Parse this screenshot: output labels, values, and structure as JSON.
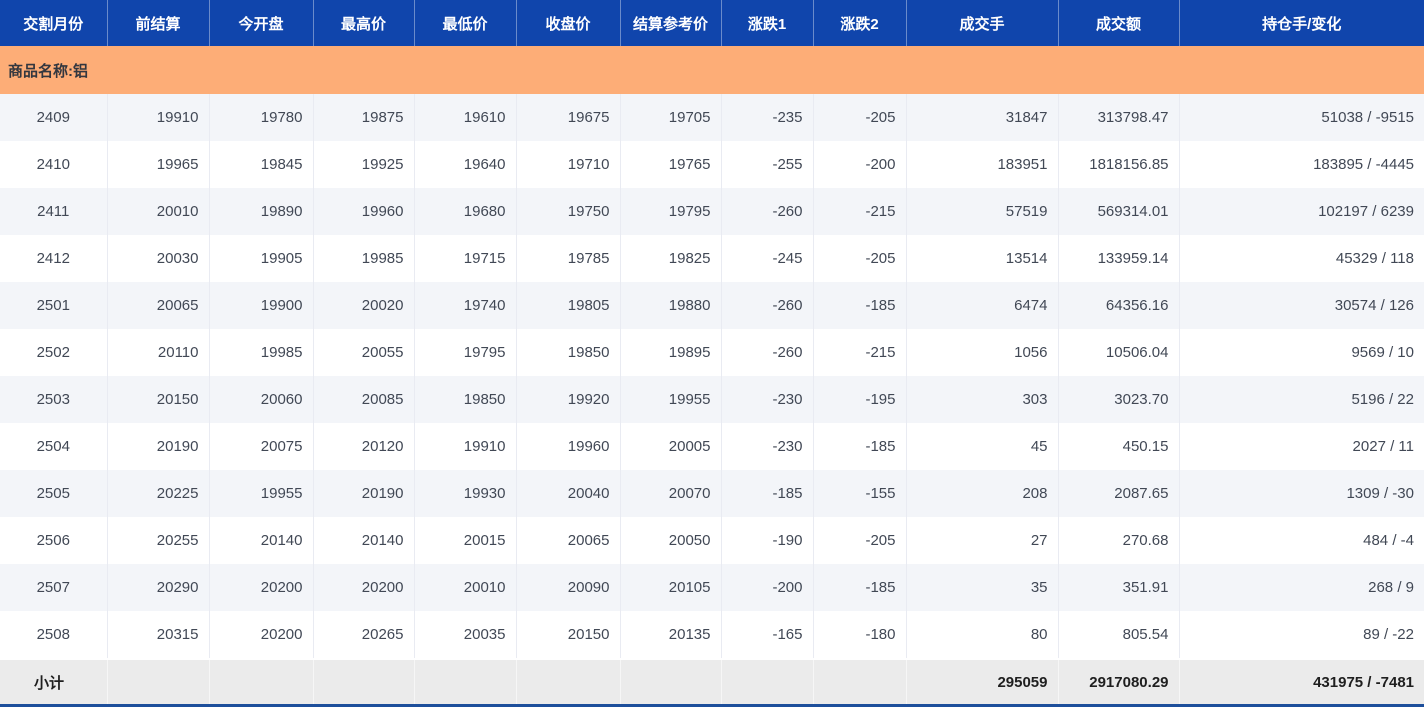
{
  "table": {
    "product_banner": "商品名称:铝",
    "columns": [
      {
        "key": "delivery-month",
        "label": "交割月份"
      },
      {
        "key": "prev-settlement",
        "label": "前结算"
      },
      {
        "key": "open",
        "label": "今开盘"
      },
      {
        "key": "high",
        "label": "最高价"
      },
      {
        "key": "low",
        "label": "最低价"
      },
      {
        "key": "close",
        "label": "收盘价"
      },
      {
        "key": "settlement-ref",
        "label": "结算参考价"
      },
      {
        "key": "change1",
        "label": "涨跌1"
      },
      {
        "key": "change2",
        "label": "涨跌2"
      },
      {
        "key": "volume",
        "label": "成交手"
      },
      {
        "key": "turnover",
        "label": "成交额"
      },
      {
        "key": "open-interest-change",
        "label": "持仓手/变化"
      }
    ],
    "rows": [
      [
        "2409",
        "19910",
        "19780",
        "19875",
        "19610",
        "19675",
        "19705",
        "-235",
        "-205",
        "31847",
        "313798.47",
        "51038 / -9515"
      ],
      [
        "2410",
        "19965",
        "19845",
        "19925",
        "19640",
        "19710",
        "19765",
        "-255",
        "-200",
        "183951",
        "1818156.85",
        "183895 / -4445"
      ],
      [
        "2411",
        "20010",
        "19890",
        "19960",
        "19680",
        "19750",
        "19795",
        "-260",
        "-215",
        "57519",
        "569314.01",
        "102197 / 6239"
      ],
      [
        "2412",
        "20030",
        "19905",
        "19985",
        "19715",
        "19785",
        "19825",
        "-245",
        "-205",
        "13514",
        "133959.14",
        "45329 / 118"
      ],
      [
        "2501",
        "20065",
        "19900",
        "20020",
        "19740",
        "19805",
        "19880",
        "-260",
        "-185",
        "6474",
        "64356.16",
        "30574 / 126"
      ],
      [
        "2502",
        "20110",
        "19985",
        "20055",
        "19795",
        "19850",
        "19895",
        "-260",
        "-215",
        "1056",
        "10506.04",
        "9569 / 10"
      ],
      [
        "2503",
        "20150",
        "20060",
        "20085",
        "19850",
        "19920",
        "19955",
        "-230",
        "-195",
        "303",
        "3023.70",
        "5196 / 22"
      ],
      [
        "2504",
        "20190",
        "20075",
        "20120",
        "19910",
        "19960",
        "20005",
        "-230",
        "-185",
        "45",
        "450.15",
        "2027 / 11"
      ],
      [
        "2505",
        "20225",
        "19955",
        "20190",
        "19930",
        "20040",
        "20070",
        "-185",
        "-155",
        "208",
        "2087.65",
        "1309 / -30"
      ],
      [
        "2506",
        "20255",
        "20140",
        "20140",
        "20015",
        "20065",
        "20050",
        "-190",
        "-205",
        "27",
        "270.68",
        "484 / -4"
      ],
      [
        "2507",
        "20290",
        "20200",
        "20200",
        "20010",
        "20090",
        "20105",
        "-200",
        "-185",
        "35",
        "351.91",
        "268 / 9"
      ],
      [
        "2508",
        "20315",
        "20200",
        "20265",
        "20035",
        "20150",
        "20135",
        "-165",
        "-180",
        "80",
        "805.54",
        "89 / -22"
      ]
    ],
    "summary": {
      "label": "小计",
      "volume": "295059",
      "turnover": "2917080.29",
      "open_interest_change": "431975 / -7481"
    }
  },
  "colors": {
    "header_bg": "#1045ac",
    "header_text": "#ffffff",
    "banner_bg": "#fdad77",
    "row_alt_bg": "#f3f5f9",
    "row_bg": "#ffffff",
    "summary_bg": "#ebebeb",
    "bottom_bar": "#1d4f9b",
    "data_text": "#414855"
  }
}
